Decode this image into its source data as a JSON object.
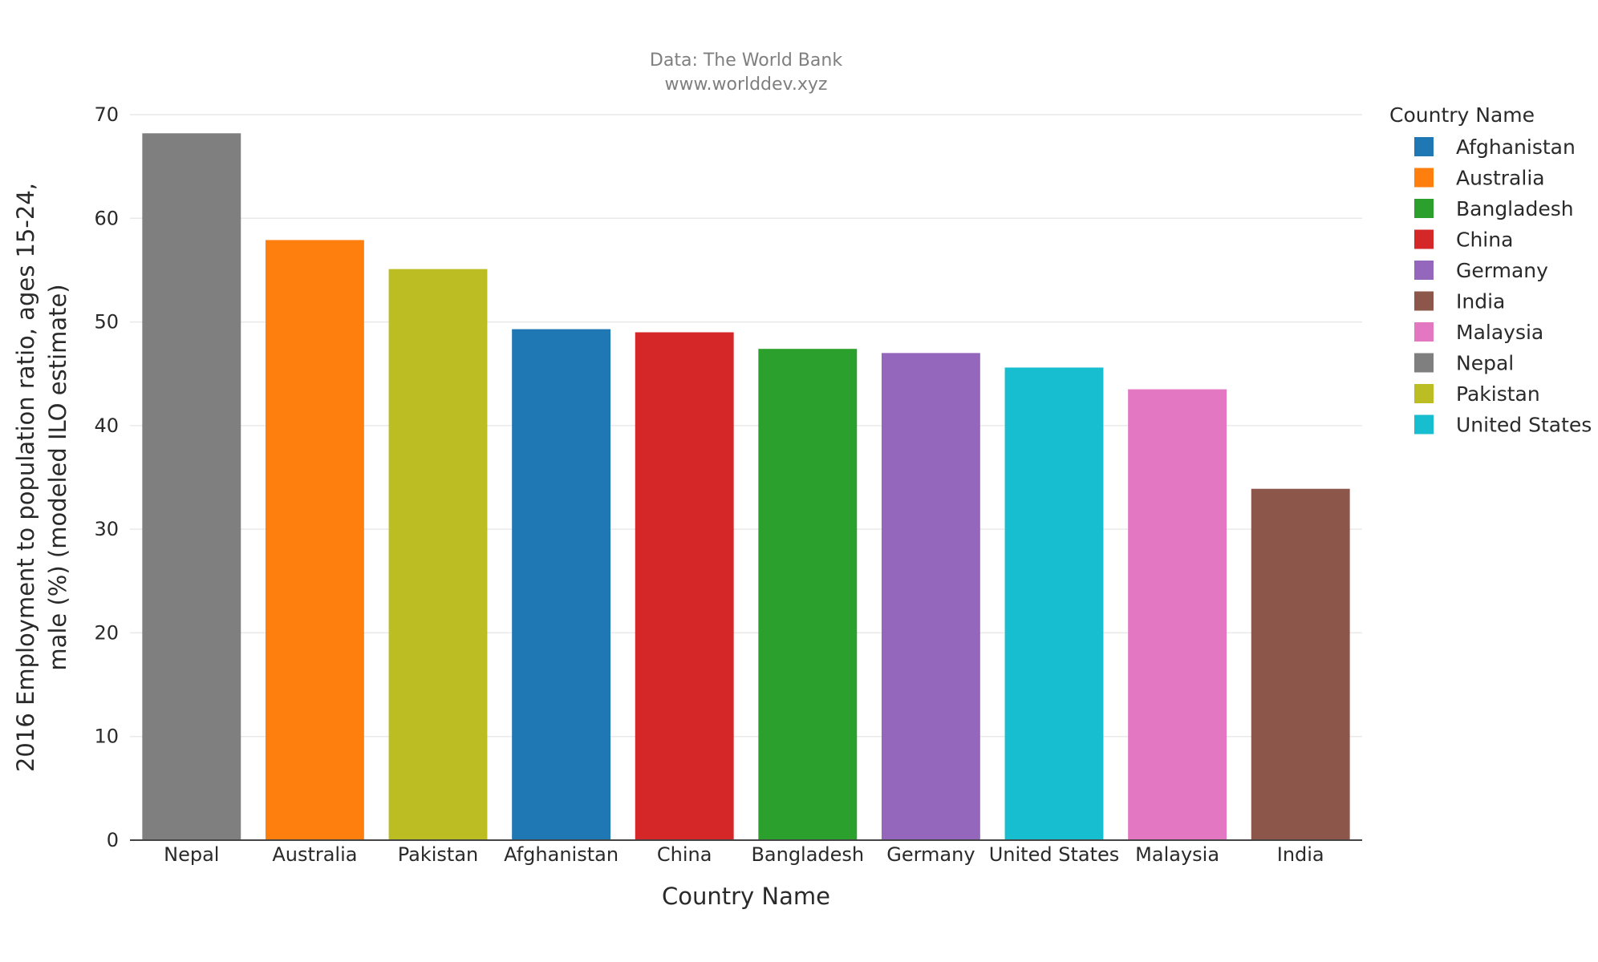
{
  "chart_data": {
    "type": "bar",
    "subtitle_lines": [
      "Data: The World Bank",
      "www.worlddev.xyz"
    ],
    "xlabel": "Country Name",
    "ylabel_lines": [
      "2016 Employment to population ratio, ages 15-24,",
      "male (%) (modeled ILO estimate)"
    ],
    "ylim": [
      0,
      70
    ],
    "yticks": [
      0,
      10,
      20,
      30,
      40,
      50,
      60,
      70
    ],
    "grid": true,
    "categories": [
      "Nepal",
      "Australia",
      "Pakistan",
      "Afghanistan",
      "China",
      "Bangladesh",
      "Germany",
      "United States",
      "Malaysia",
      "India"
    ],
    "values": [
      68.2,
      57.9,
      55.1,
      49.3,
      49.0,
      47.4,
      47.0,
      45.6,
      43.5,
      33.9
    ],
    "colors": [
      "#7f7f7f",
      "#ff7f0e",
      "#bcbd22",
      "#1f77b4",
      "#d62728",
      "#2ca02c",
      "#9467bd",
      "#17becf",
      "#e377c2",
      "#8c564b"
    ],
    "legend": {
      "title": "Country Name",
      "placement": "top-right",
      "entries": [
        {
          "label": "Afghanistan",
          "color": "#1f77b4"
        },
        {
          "label": "Australia",
          "color": "#ff7f0e"
        },
        {
          "label": "Bangladesh",
          "color": "#2ca02c"
        },
        {
          "label": "China",
          "color": "#d62728"
        },
        {
          "label": "Germany",
          "color": "#9467bd"
        },
        {
          "label": "India",
          "color": "#8c564b"
        },
        {
          "label": "Malaysia",
          "color": "#e377c2"
        },
        {
          "label": "Nepal",
          "color": "#7f7f7f"
        },
        {
          "label": "Pakistan",
          "color": "#bcbd22"
        },
        {
          "label": "United States",
          "color": "#17becf"
        }
      ]
    }
  }
}
